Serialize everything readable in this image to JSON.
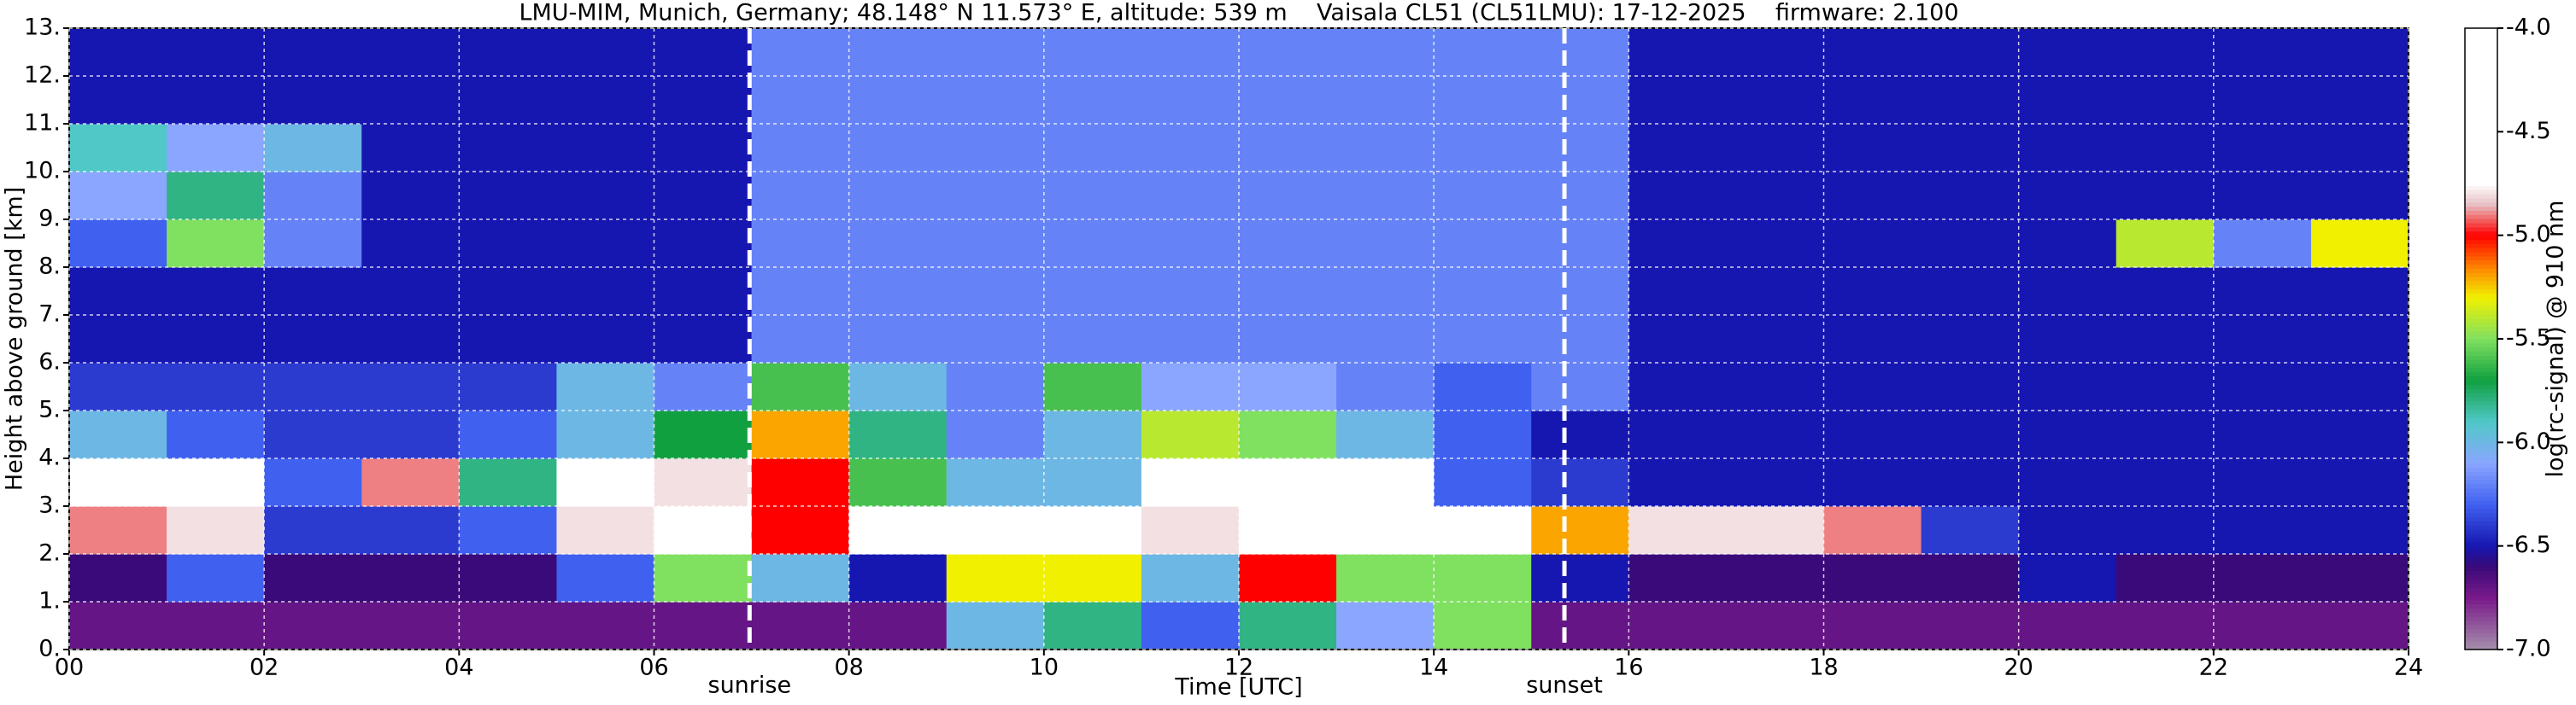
{
  "chart_data": {
    "type": "heatmap",
    "title": "LMU-MIM, Munich, Germany; 48.148° N 11.573° E, altitude: 539 m    Vaisala CL51 (CL51LMU): 17-12-2025    firmware: 2.100",
    "x_label": "Time [UTC]",
    "y_label": "Height above ground [km]",
    "colorbar_label": "log(rc-signal) @ 910 nm",
    "x": [
      0,
      1,
      2,
      3,
      4,
      5,
      6,
      7,
      8,
      9,
      10,
      11,
      12,
      13,
      14,
      15,
      16,
      17,
      18,
      19,
      20,
      21,
      22,
      23,
      24
    ],
    "y": [
      0,
      1,
      2,
      3,
      4,
      5,
      6,
      7,
      8,
      9,
      10,
      11,
      12,
      13
    ],
    "values": [
      [
        -6.7,
        -6.7,
        -6.7,
        -6.7,
        -6.7,
        -6.7,
        -6.7,
        -6.7,
        -6.7,
        -6.0,
        -5.8,
        -6.3,
        -5.8,
        -6.1,
        -5.5,
        -6.7,
        -6.7,
        -6.7,
        -6.7,
        -6.7,
        -6.7,
        -6.7,
        -6.7,
        -6.7
      ],
      [
        -6.6,
        -6.3,
        -6.6,
        -6.6,
        -6.6,
        -6.3,
        -5.5,
        -6.0,
        -6.5,
        -5.3,
        -5.3,
        -6.0,
        -5.0,
        -5.5,
        -5.5,
        -6.5,
        -6.6,
        -6.6,
        -6.6,
        -6.6,
        -6.5,
        -6.6,
        -6.6,
        -6.6
      ],
      [
        -4.9,
        -4.8,
        -6.4,
        -6.4,
        -6.3,
        -4.8,
        -4.7,
        -5.0,
        -4.6,
        -4.6,
        -4.7,
        -4.8,
        -4.4,
        -4.5,
        -4.7,
        -5.2,
        -4.8,
        -4.8,
        -4.9,
        -6.4,
        -6.5,
        -6.5,
        -6.5,
        -6.5
      ],
      [
        -4.7,
        -4.6,
        -6.3,
        -4.9,
        -5.8,
        -4.6,
        -4.8,
        -5.0,
        -5.6,
        -6.0,
        -6.0,
        -4.6,
        -4.4,
        -4.6,
        -6.3,
        -6.4,
        -6.5,
        -6.5,
        -6.5,
        -6.5,
        -6.5,
        -6.5,
        -6.5,
        -6.5
      ],
      [
        -6.0,
        -6.3,
        -6.4,
        -6.4,
        -6.3,
        -6.0,
        -5.7,
        -5.2,
        -5.8,
        -6.2,
        -6.0,
        -5.4,
        -5.5,
        -6.0,
        -6.3,
        -6.5,
        -6.5,
        -6.5,
        -6.5,
        -6.5,
        -6.5,
        -6.5,
        -6.5,
        -6.5
      ],
      [
        -6.4,
        -6.4,
        -6.4,
        -6.4,
        -6.4,
        -6.0,
        -6.2,
        -5.6,
        -6.0,
        -6.2,
        -5.6,
        -6.1,
        -6.1,
        -6.2,
        -6.3,
        -6.2,
        -6.5,
        -6.5,
        -6.5,
        -6.5,
        -6.5,
        -6.5,
        -6.5,
        -6.5
      ],
      [
        -6.5,
        -6.5,
        -6.5,
        -6.5,
        -6.5,
        -6.5,
        -6.5,
        -6.2,
        -6.2,
        -6.2,
        -6.2,
        -6.2,
        -6.2,
        -6.2,
        -6.2,
        -6.2,
        -6.5,
        -6.5,
        -6.5,
        -6.5,
        -6.5,
        -6.5,
        -6.5,
        -6.5
      ],
      [
        -6.5,
        -6.5,
        -6.5,
        -6.5,
        -6.5,
        -6.5,
        -6.5,
        -6.2,
        -6.2,
        -6.2,
        -6.2,
        -6.2,
        -6.2,
        -6.2,
        -6.2,
        -6.2,
        -6.5,
        -6.5,
        -6.5,
        -6.5,
        -6.5,
        -6.5,
        -6.5,
        -6.5
      ],
      [
        -6.3,
        -5.5,
        -6.2,
        -6.5,
        -6.5,
        -6.5,
        -6.5,
        -6.2,
        -6.2,
        -6.2,
        -6.2,
        -6.2,
        -6.2,
        -6.2,
        -6.2,
        -6.2,
        -6.5,
        -6.5,
        -6.5,
        -6.5,
        -6.5,
        -5.4,
        -6.2,
        -5.3
      ],
      [
        -6.1,
        -5.8,
        -6.2,
        -6.5,
        -6.5,
        -6.5,
        -6.5,
        -6.2,
        -6.2,
        -6.2,
        -6.2,
        -6.2,
        -6.2,
        -6.2,
        -6.2,
        -6.2,
        -6.5,
        -6.5,
        -6.5,
        -6.5,
        -6.5,
        -6.5,
        -6.5,
        -6.5
      ],
      [
        -5.9,
        -6.1,
        -6.0,
        -6.5,
        -6.5,
        -6.5,
        -6.5,
        -6.2,
        -6.2,
        -6.2,
        -6.2,
        -6.2,
        -6.2,
        -6.2,
        -6.2,
        -6.2,
        -6.5,
        -6.5,
        -6.5,
        -6.5,
        -6.5,
        -6.5,
        -6.5,
        -6.5
      ],
      [
        -6.5,
        -6.5,
        -6.5,
        -6.5,
        -6.5,
        -6.5,
        -6.5,
        -6.2,
        -6.2,
        -6.2,
        -6.2,
        -6.2,
        -6.2,
        -6.2,
        -6.2,
        -6.2,
        -6.5,
        -6.5,
        -6.5,
        -6.5,
        -6.5,
        -6.5,
        -6.5,
        -6.5
      ],
      [
        -6.5,
        -6.5,
        -6.5,
        -6.5,
        -6.5,
        -6.5,
        -6.5,
        -6.2,
        -6.2,
        -6.2,
        -6.2,
        -6.2,
        -6.2,
        -6.2,
        -6.2,
        -6.2,
        -6.5,
        -6.5,
        -6.5,
        -6.5,
        -6.5,
        -6.5,
        -6.5,
        -6.5
      ]
    ],
    "xlim": [
      0,
      24
    ],
    "xticks": [
      {
        "value": 0,
        "label": "00"
      },
      {
        "value": 2,
        "label": "02"
      },
      {
        "value": 4,
        "label": "04"
      },
      {
        "value": 6,
        "label": "06"
      },
      {
        "value": 8,
        "label": "08"
      },
      10,
      12,
      14,
      16,
      18,
      20,
      22,
      24
    ],
    "ylim": [
      0,
      13
    ],
    "yticks": [
      {
        "value": 0,
        "label": "0."
      },
      {
        "value": 1,
        "label": "1."
      },
      {
        "value": 2,
        "label": "2."
      },
      {
        "value": 3,
        "label": "3."
      },
      {
        "value": 4,
        "label": "4."
      },
      {
        "value": 5,
        "label": "5."
      },
      {
        "value": 6,
        "label": "6."
      },
      {
        "value": 7,
        "label": "7."
      },
      {
        "value": 8,
        "label": "8."
      },
      {
        "value": 9,
        "label": "9."
      },
      {
        "value": 10,
        "label": "10."
      },
      {
        "value": 11,
        "label": "11."
      },
      {
        "value": 12,
        "label": "12."
      },
      {
        "value": 13,
        "label": "13."
      }
    ],
    "clim": [
      -7,
      -4
    ],
    "cticks": [
      {
        "value": -4,
        "label": "-4.0"
      },
      -4.5,
      {
        "value": -5,
        "label": "-5.0"
      },
      -5.5,
      {
        "value": -6,
        "label": "-6.0"
      },
      -6.5,
      {
        "value": -7,
        "label": "-7.0"
      }
    ],
    "colormap": [
      [
        -7.0,
        "#a58fab"
      ],
      [
        -6.75,
        "#7a1a8a"
      ],
      [
        -6.6,
        "#3a0a7a"
      ],
      [
        -6.5,
        "#1616b0"
      ],
      [
        -6.3,
        "#4060f0"
      ],
      [
        -6.1,
        "#8aa6ff"
      ],
      [
        -5.9,
        "#50c8c8"
      ],
      [
        -5.7,
        "#10a040"
      ],
      [
        -5.5,
        "#80e060"
      ],
      [
        -5.3,
        "#f0f000"
      ],
      [
        -5.15,
        "#ff8000"
      ],
      [
        -5.0,
        "#ff0000"
      ],
      [
        -4.85,
        "#e6c0c4"
      ],
      [
        -4.75,
        "#ffffff"
      ],
      [
        -4.0,
        "#ffffff"
      ]
    ],
    "grid": true,
    "annotations": [
      {
        "text": "sunrise",
        "x": 6.98
      },
      {
        "text": "sunset",
        "x": 15.34
      }
    ]
  }
}
